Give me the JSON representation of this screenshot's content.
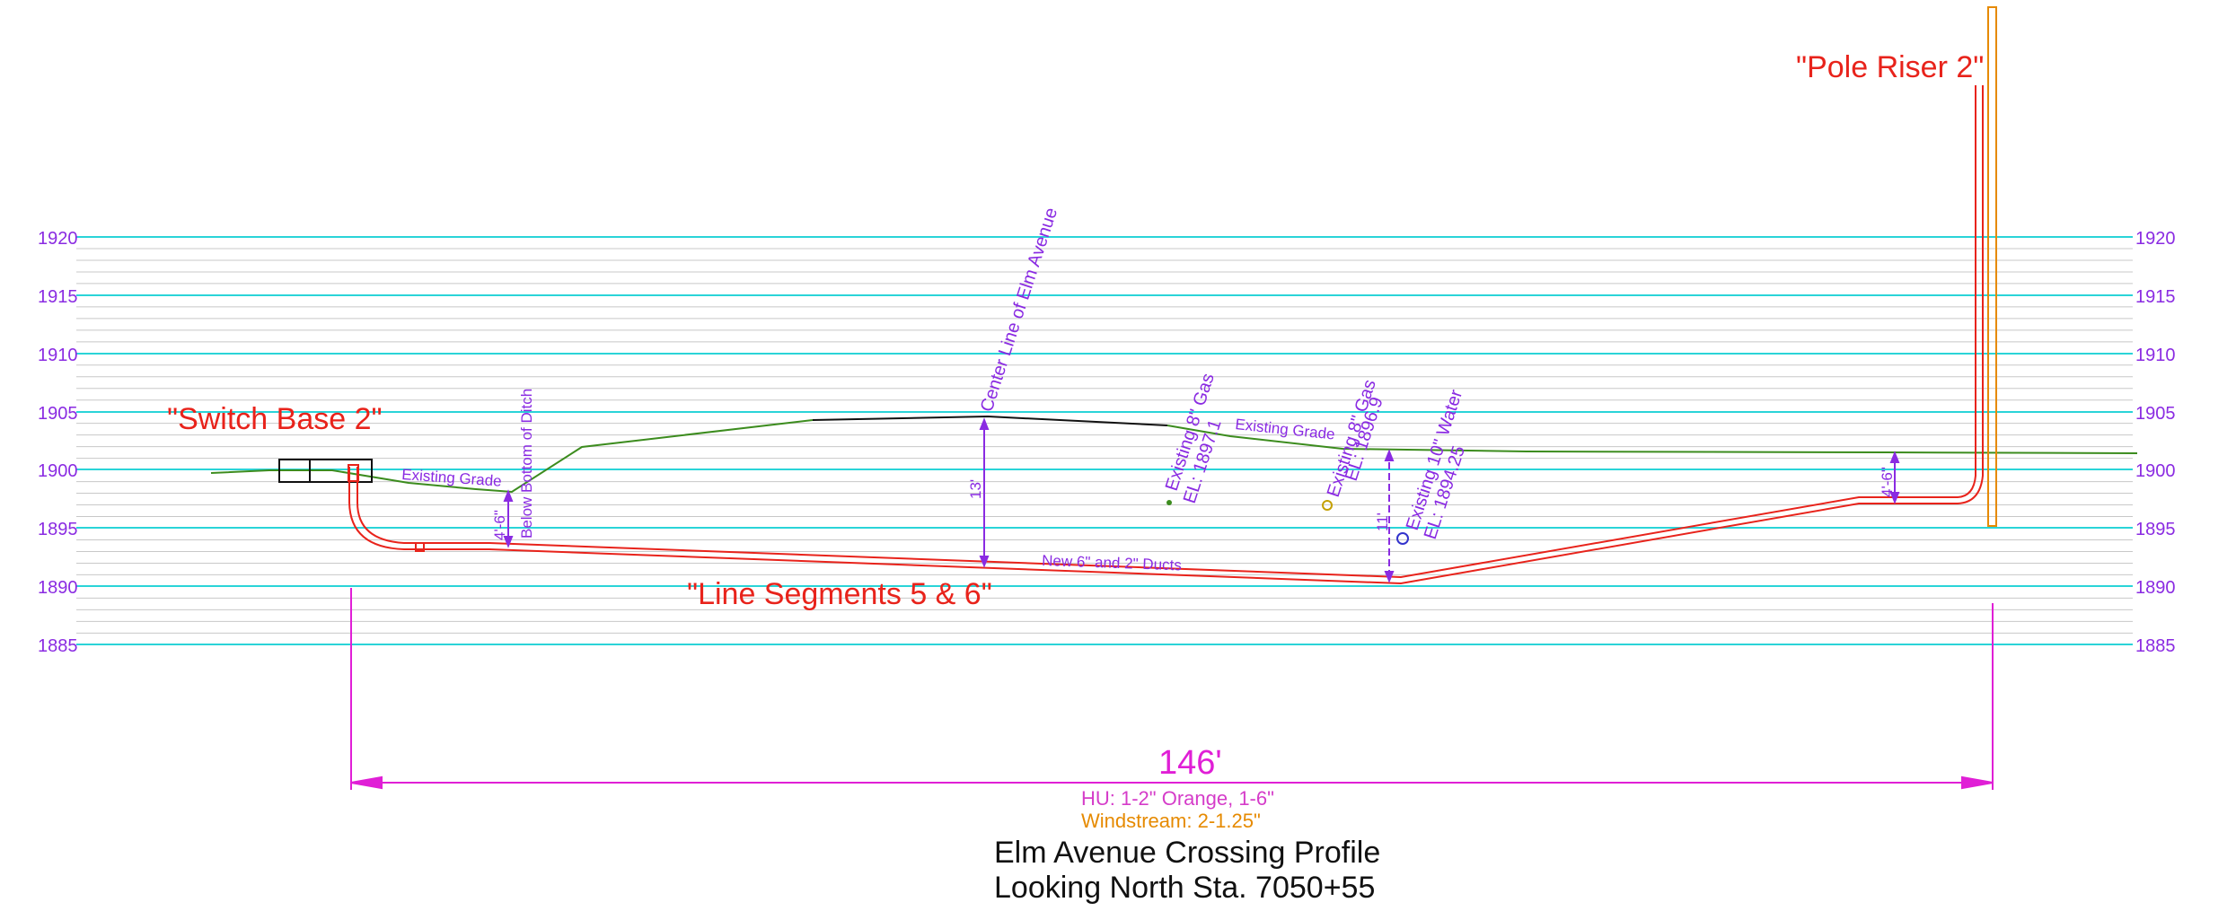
{
  "elevations": [
    "1920",
    "1915",
    "1910",
    "1905",
    "1900",
    "1895",
    "1890",
    "1885"
  ],
  "labels": {
    "switch_base": "\"Switch Base 2\"",
    "pole_riser": "\"Pole Riser 2\"",
    "line_segments": "\"Line Segments 5 & 6\"",
    "existing_grade_1": "Existing Grade",
    "existing_grade_2": "Existing Grade",
    "below_ditch": "Below Bottom of Ditch",
    "ditch_depth": "4'-6\"",
    "riser_depth": "4'-6\"",
    "center_line": "Center Line of Elm Avenue",
    "center_depth": "13'",
    "gas1_name": "Existing 8\" Gas",
    "gas1_el": "EL: 1897.1",
    "gas2_name": "Existing 8\" Gas",
    "gas2_el": "EL: 1896.9",
    "water_name": "Existing 10\" Water",
    "water_el": "EL: 1894.25",
    "water_depth": "11'",
    "ducts": "New 6\" and 2\" Ducts"
  },
  "dimension": {
    "length": "146'",
    "hu": "HU: 1-2\" Orange, 1-6\"",
    "windstream": "Windstream:  2-1.25\""
  },
  "title": {
    "line1": "Elm Avenue Crossing Profile",
    "line2": "Looking North Sta. 7050+55"
  },
  "colors": {
    "grid_major": "#2ad4d8",
    "grid_minor": "#c8c8c8",
    "conduit": "#e8231b",
    "grade": "#3c8c1e",
    "annotation": "#8a2be2",
    "dimension": "#e01fd6",
    "windstream": "#e68a00"
  }
}
